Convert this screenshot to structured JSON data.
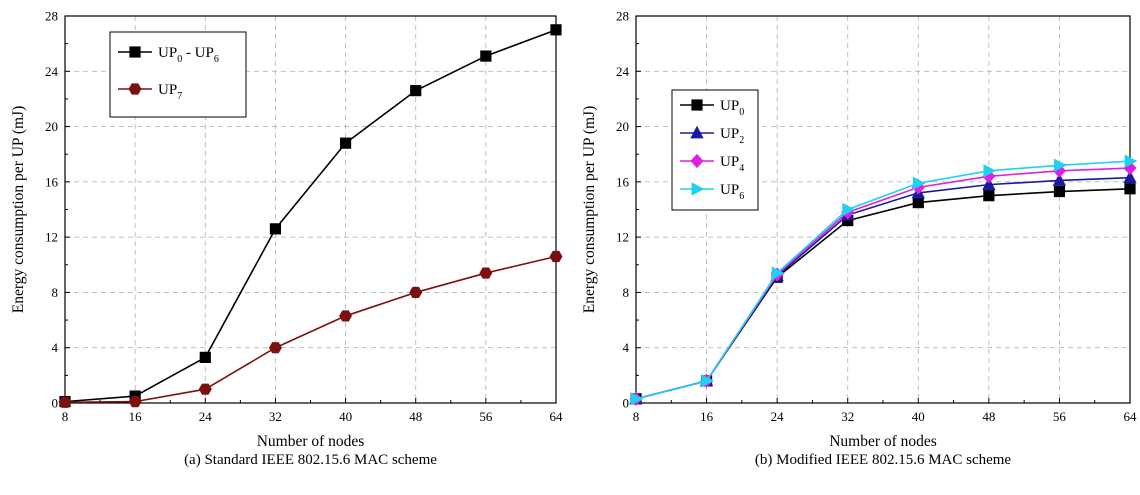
{
  "chart_data": [
    {
      "type": "line",
      "caption": "(a) Standard IEEE 802.15.6 MAC scheme",
      "xlabel": "Number of nodes",
      "ylabel": "Energy consumption per UP (mJ)",
      "x": [
        8,
        16,
        24,
        32,
        40,
        48,
        56,
        64
      ],
      "xlim": [
        8,
        64
      ],
      "ylim": [
        0,
        28
      ],
      "xticks": [
        "8",
        "16",
        "24",
        "32",
        "40",
        "48",
        "56",
        "64"
      ],
      "yticks": [
        "0",
        "4",
        "8",
        "12",
        "16",
        "20",
        "24",
        "28"
      ],
      "grid": true,
      "legend_position": "top-left",
      "series": [
        {
          "name": "UP0 - UP6",
          "label_base": "UP",
          "label_sub": "0",
          "label_mid": " - UP",
          "label_sub2": "6",
          "color": "#000000",
          "marker": "square",
          "values": [
            0.1,
            0.5,
            3.3,
            12.6,
            18.8,
            22.6,
            25.1,
            27.0
          ]
        },
        {
          "name": "UP7",
          "label_base": "UP",
          "label_sub": "7",
          "color": "#7b1010",
          "marker": "hexagon",
          "values": [
            0.05,
            0.1,
            1.0,
            4.0,
            6.3,
            8.0,
            9.4,
            10.6
          ]
        }
      ]
    },
    {
      "type": "line",
      "caption": "(b) Modified IEEE 802.15.6 MAC scheme",
      "xlabel": "Number of nodes",
      "ylabel": "Energy consumption per UP (mJ)",
      "x": [
        8,
        16,
        24,
        32,
        40,
        48,
        56,
        64
      ],
      "xlim": [
        8,
        64
      ],
      "ylim": [
        0,
        28
      ],
      "xticks": [
        "8",
        "16",
        "24",
        "32",
        "40",
        "48",
        "56",
        "64"
      ],
      "yticks": [
        "0",
        "4",
        "8",
        "12",
        "16",
        "20",
        "24",
        "28"
      ],
      "grid": true,
      "legend_position": "middle-left",
      "series": [
        {
          "name": "UP0",
          "label_base": "UP",
          "label_sub": "0",
          "color": "#000000",
          "marker": "square",
          "values": [
            0.3,
            1.6,
            9.1,
            13.2,
            14.5,
            15.0,
            15.3,
            15.5
          ]
        },
        {
          "name": "UP2",
          "label_base": "UP",
          "label_sub": "2",
          "color": "#1a1aa0",
          "marker": "triangle-up",
          "values": [
            0.3,
            1.6,
            9.2,
            13.6,
            15.2,
            15.8,
            16.1,
            16.3
          ]
        },
        {
          "name": "UP4",
          "label_base": "UP",
          "label_sub": "4",
          "color": "#e020e0",
          "marker": "diamond",
          "values": [
            0.3,
            1.6,
            9.3,
            13.8,
            15.6,
            16.4,
            16.8,
            17.0
          ]
        },
        {
          "name": "UP6",
          "label_base": "UP",
          "label_sub": "6",
          "color": "#20d0f0",
          "marker": "triangle-right",
          "values": [
            0.3,
            1.6,
            9.4,
            14.0,
            15.9,
            16.8,
            17.2,
            17.5
          ]
        }
      ]
    }
  ]
}
